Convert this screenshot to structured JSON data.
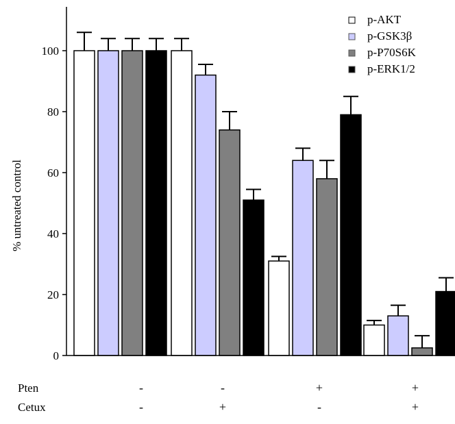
{
  "chart_data": {
    "type": "bar",
    "ylabel": "% untreated control",
    "ylim": [
      0,
      115
    ],
    "yticks": [
      0,
      20,
      40,
      60,
      80,
      100
    ],
    "grid": false,
    "legend_position": "top-right",
    "series": [
      {
        "name": "p-AKT",
        "color": "#ffffff",
        "values": [
          100,
          100,
          31,
          10
        ],
        "errors": [
          6,
          4,
          1.5,
          1.5
        ]
      },
      {
        "name": "p-GSK3β",
        "color": "#ccccff",
        "values": [
          100,
          92,
          64,
          13
        ],
        "errors": [
          4,
          3.5,
          4,
          3.5
        ]
      },
      {
        "name": "p-P70S6K",
        "color": "#808080",
        "values": [
          100,
          74,
          58,
          2.5
        ],
        "errors": [
          4,
          6,
          6,
          4
        ]
      },
      {
        "name": "p-ERK1/2",
        "color": "#000000",
        "values": [
          100,
          51,
          79,
          21
        ],
        "errors": [
          4,
          3.5,
          6,
          4.5
        ]
      }
    ],
    "conditions": {
      "rows": [
        {
          "label": "Pten",
          "values": [
            "-",
            "-",
            "+",
            "+"
          ]
        },
        {
          "label": "Cetux",
          "values": [
            "-",
            "+",
            "-",
            "+"
          ]
        }
      ]
    }
  }
}
